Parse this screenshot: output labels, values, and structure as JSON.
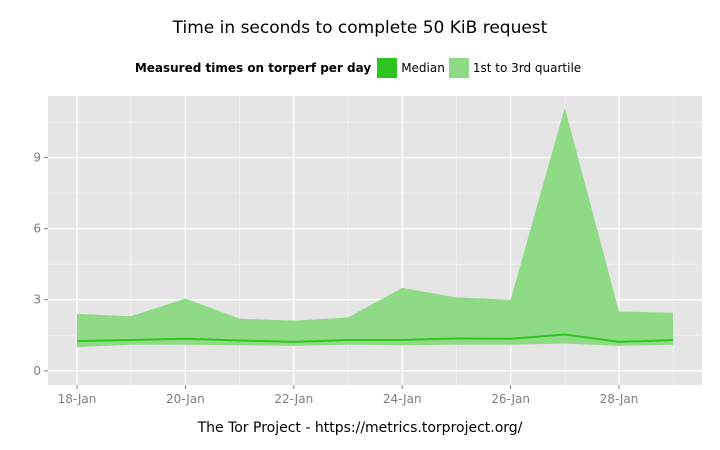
{
  "colors": {
    "panel": "#e5e5e5",
    "grid_major": "#ffffff",
    "grid_minor": "#f2f2f2",
    "median": "#2ec41f",
    "quartile": "#8fdb85",
    "tick_text": "#7f7f7f"
  },
  "legend": {
    "title": "Measured times on torperf per day",
    "median_label": "Median",
    "quartile_label": "1st to 3rd quartile"
  },
  "caption": "The Tor Project - https://metrics.torproject.org/",
  "chart_data": {
    "type": "area",
    "title": "Time in seconds to complete 50 KiB request",
    "xlabel": "",
    "ylabel": "",
    "x": [
      "18-Jan",
      "19-Jan",
      "20-Jan",
      "21-Jan",
      "22-Jan",
      "23-Jan",
      "24-Jan",
      "25-Jan",
      "26-Jan",
      "27-Jan",
      "28-Jan",
      "29-Jan"
    ],
    "x_tick_labels": [
      "18-Jan",
      "20-Jan",
      "22-Jan",
      "24-Jan",
      "26-Jan",
      "28-Jan"
    ],
    "ylim": [
      -0.6,
      11.6
    ],
    "y_ticks": [
      0,
      3,
      6,
      9
    ],
    "grid": true,
    "legend_position": "top",
    "series": [
      {
        "name": "Median",
        "type": "line",
        "values": [
          1.25,
          1.3,
          1.35,
          1.28,
          1.22,
          1.3,
          1.3,
          1.37,
          1.35,
          1.53,
          1.22,
          1.3
        ]
      },
      {
        "name": "1st to 3rd quartile",
        "type": "band",
        "lower": [
          1.0,
          1.1,
          1.1,
          1.08,
          1.05,
          1.1,
          1.08,
          1.1,
          1.1,
          1.15,
          1.05,
          1.1
        ],
        "upper": [
          2.4,
          2.3,
          3.05,
          2.2,
          2.12,
          2.25,
          3.5,
          3.1,
          3.0,
          11.1,
          2.5,
          2.45
        ]
      }
    ]
  }
}
